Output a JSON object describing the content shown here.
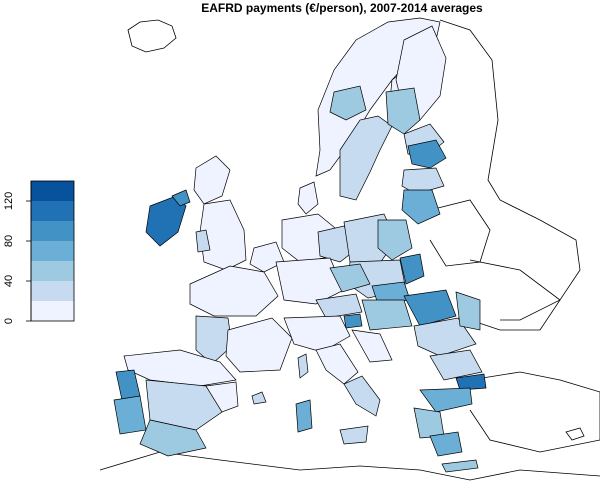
{
  "title": "EAFRD payments (€/person), 2007-2014 averages",
  "legend": {
    "ticks": [
      "0",
      "40",
      "80",
      "120"
    ],
    "colors": [
      "#eff3ff",
      "#c6dbef",
      "#9ecae1",
      "#6baed6",
      "#4292c6",
      "#2171b5",
      "#08519c"
    ]
  },
  "colors": {
    "background": "#ffffff",
    "border": "#000000",
    "level0": "#eff3ff",
    "level1": "#c6dbef",
    "level2": "#9ecae1",
    "level3": "#6baed6",
    "level4": "#4292c6",
    "level5": "#2171b5",
    "level6": "#08519c"
  }
}
